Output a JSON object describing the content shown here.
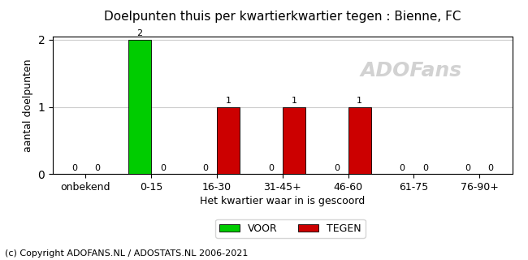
{
  "chart_data": {
    "type": "bar",
    "title": "Doelpunten thuis per kwartierkwartier tegen : Bienne, FC",
    "x_label": "Het kwartier waar in is gescoord",
    "y_label": "aantal doelpunten",
    "categories": [
      "onbekend",
      "0-15",
      "16-30",
      "31-45+",
      "46-60",
      "61-75",
      "76-90+"
    ],
    "series": [
      {
        "name": "VOOR",
        "color": "#00cc00",
        "values": [
          0,
          2,
          0,
          0,
          0,
          0,
          0
        ]
      },
      {
        "name": "TEGEN",
        "color": "#cc0000",
        "values": [
          0,
          0,
          1,
          1,
          1,
          0,
          0
        ]
      }
    ],
    "ylim": [
      0,
      2.05
    ],
    "yticks": [
      0,
      1,
      2
    ],
    "grid": true,
    "data_labels": true,
    "legend": "lower center",
    "annotations": [
      "ADOFans",
      "(c) Copyright ADOFANS.NL / ADOSTATS.NL 2006-2021"
    ]
  }
}
